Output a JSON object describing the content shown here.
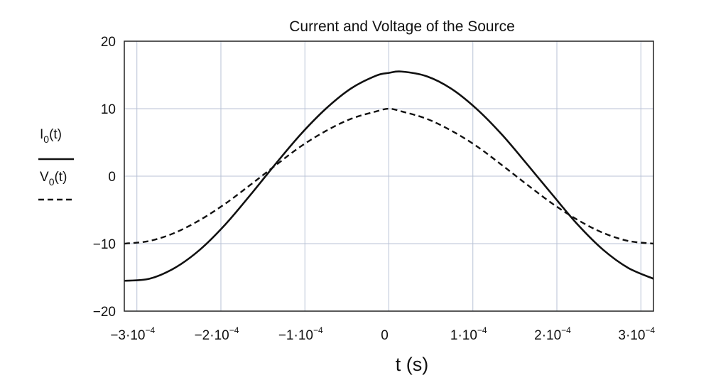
{
  "chart_data": {
    "type": "line",
    "title": "Current and Voltage of the Source",
    "xlabel": "t (s)",
    "ylabel": "",
    "xlim": [
      -0.000315,
      0.000315
    ],
    "ylim": [
      -20,
      20
    ],
    "grid": true,
    "x_ticks": [
      {
        "value": -0.0003,
        "mant": "−3·10",
        "exp": "−4"
      },
      {
        "value": -0.0002,
        "mant": "−2·10",
        "exp": "−4"
      },
      {
        "value": -0.0001,
        "mant": "−1·10",
        "exp": "−4"
      },
      {
        "value": 0,
        "mant": "0",
        "exp": ""
      },
      {
        "value": 0.0001,
        "mant": "1·10",
        "exp": "−4"
      },
      {
        "value": 0.0002,
        "mant": "2·10",
        "exp": "−4"
      },
      {
        "value": 0.0003,
        "mant": "3·10",
        "exp": "−4"
      }
    ],
    "y_ticks": [
      {
        "value": 20,
        "label": "20"
      },
      {
        "value": 10,
        "label": "10"
      },
      {
        "value": 0,
        "label": "0"
      },
      {
        "value": -10,
        "label": "−10"
      },
      {
        "value": -20,
        "label": "−20"
      }
    ],
    "x": [
      -0.000315,
      -0.000285,
      -0.000255,
      -0.000225,
      -0.000195,
      -0.000165,
      -0.000135,
      -0.000105,
      -7.5e-05,
      -4.5e-05,
      -1.5e-05,
      0.0,
      1.5e-05,
      4.5e-05,
      7.5e-05,
      0.000105,
      0.000135,
      0.000165,
      0.000195,
      0.000225,
      0.000255,
      0.000285,
      0.000315
    ],
    "series": [
      {
        "name": "I0(t)",
        "style": "solid",
        "values": [
          -15.5,
          -15.2,
          -13.6,
          -10.9,
          -7.2,
          -2.8,
          1.8,
          6.2,
          10.0,
          13.0,
          14.9,
          15.3,
          15.5,
          14.8,
          12.9,
          9.9,
          6.1,
          1.7,
          -2.8,
          -7.2,
          -10.9,
          -13.6,
          -15.2
        ]
      },
      {
        "name": "V0(t)",
        "style": "dashed",
        "values": [
          -10.0,
          -9.6,
          -8.4,
          -6.5,
          -4.1,
          -1.3,
          1.6,
          4.4,
          6.7,
          8.5,
          9.6,
          10.0,
          9.6,
          8.5,
          6.7,
          4.4,
          1.6,
          -1.3,
          -4.1,
          -6.5,
          -8.4,
          -9.6,
          -10.0
        ]
      }
    ],
    "legend": {
      "placement": "left",
      "entries": [
        {
          "main": "I",
          "sub": "0",
          "rest": "(t)",
          "line": "solid"
        },
        {
          "main": "V",
          "sub": "0",
          "rest": "(t)",
          "line": "dashed"
        }
      ]
    }
  }
}
